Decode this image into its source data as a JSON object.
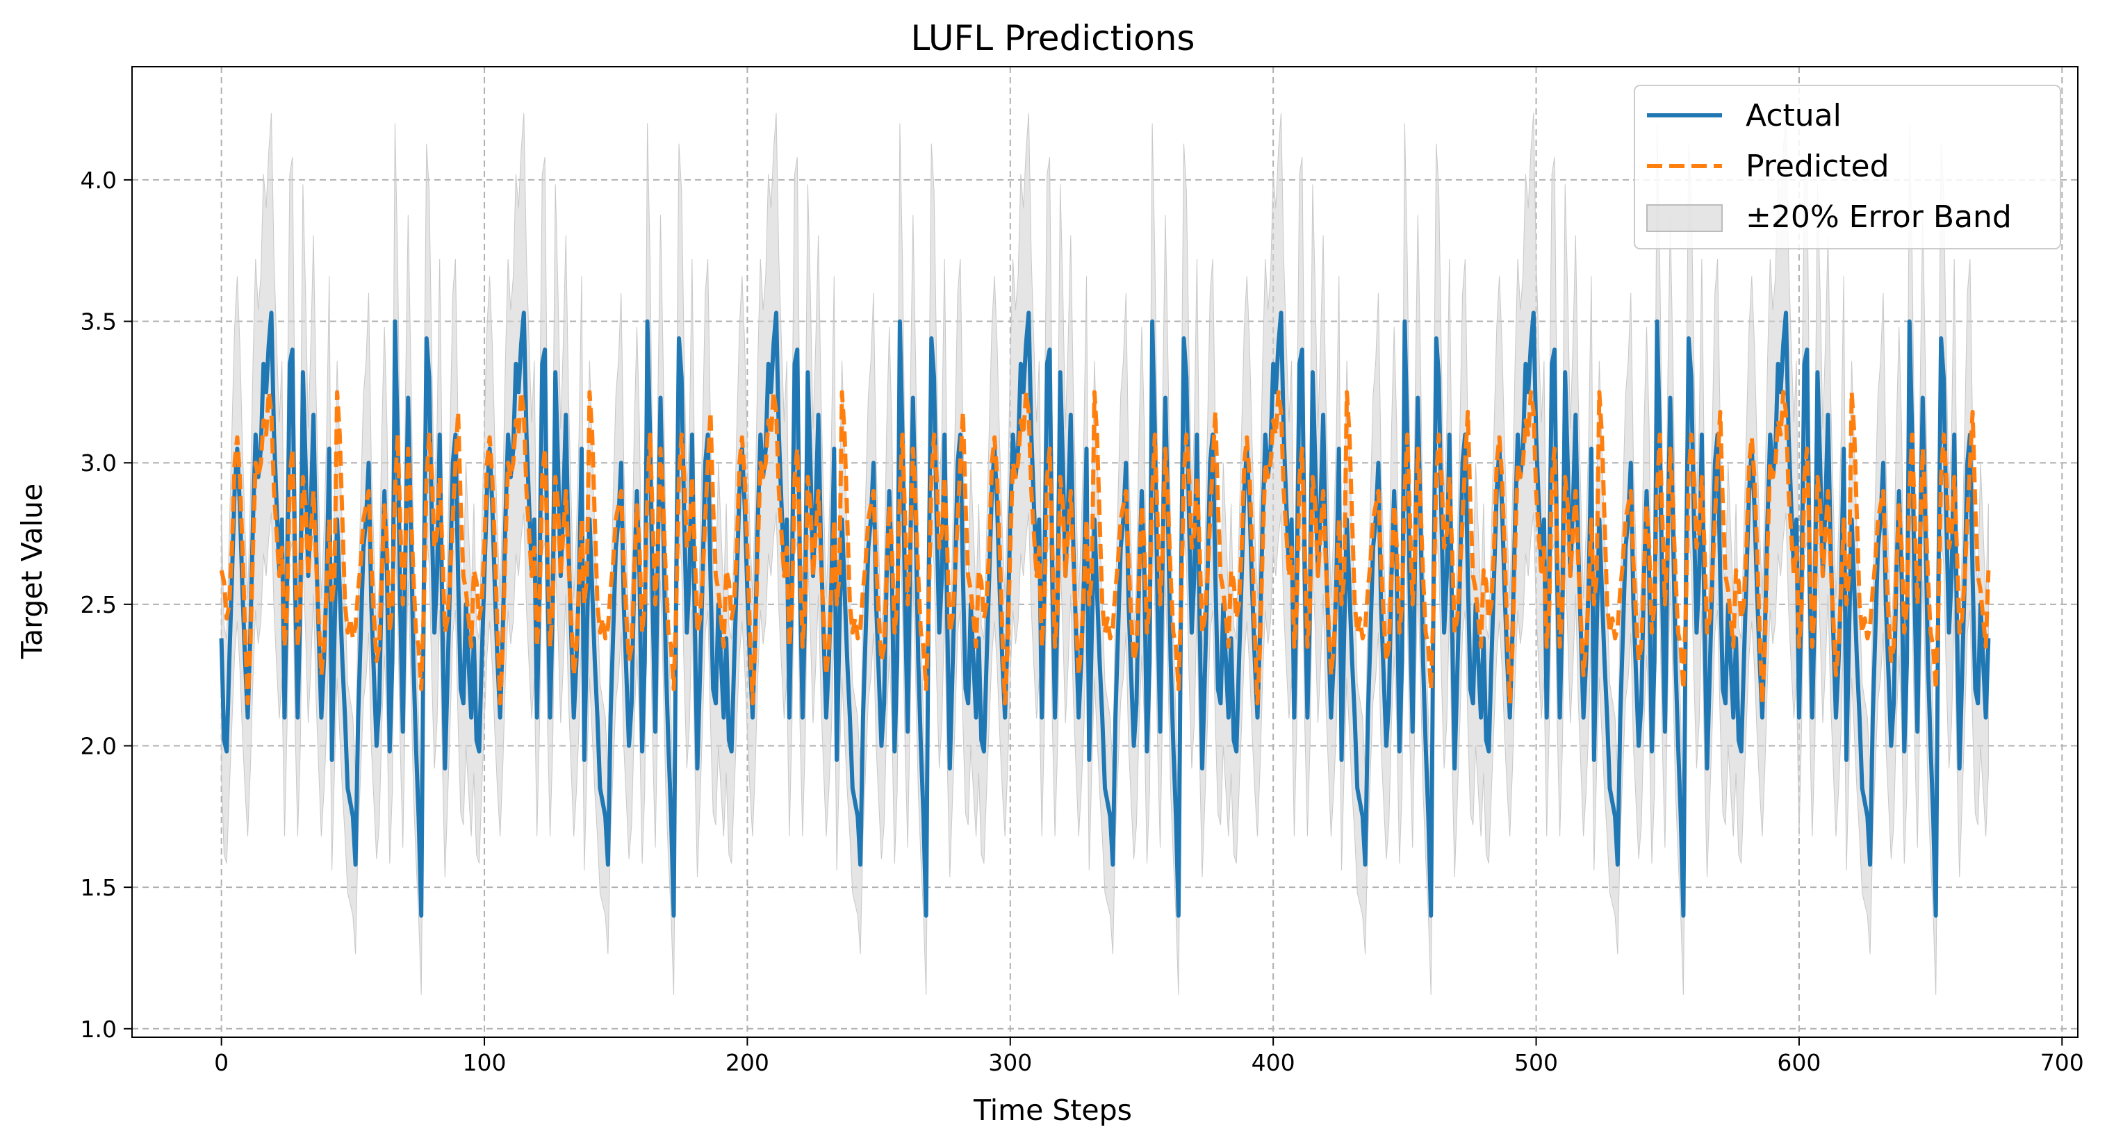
{
  "chart_data": {
    "type": "line",
    "title": "LUFL Predictions",
    "xlabel": "Time Steps",
    "ylabel": "Target Value",
    "xlim": [
      -34,
      706
    ],
    "ylim": [
      0.97,
      4.4
    ],
    "xticks": [
      0,
      100,
      200,
      300,
      400,
      500,
      600,
      700
    ],
    "yticks": [
      1.0,
      1.5,
      2.0,
      2.5,
      3.0,
      3.5,
      4.0
    ],
    "ytick_labels": [
      "1.0",
      "1.5",
      "2.0",
      "2.5",
      "3.0",
      "3.5",
      "4.0"
    ],
    "grid": true,
    "legend_position": "top-right",
    "period": 96,
    "n_points": 673,
    "band_fraction": 0.2,
    "series": [
      {
        "name": "Actual",
        "color": "#1f77b4",
        "style": "solid",
        "cycle_values": [
          2.38,
          2.02,
          1.98,
          2.3,
          2.6,
          2.9,
          3.05,
          2.85,
          2.55,
          2.3,
          2.1,
          2.4,
          2.8,
          3.1,
          2.95,
          3.05,
          3.35,
          3.25,
          3.42,
          3.53,
          3.1,
          2.85,
          2.62,
          2.8,
          2.1,
          2.6,
          3.35,
          3.4,
          2.6,
          2.1,
          2.5,
          3.32,
          3.0,
          2.6,
          2.85,
          3.17,
          2.7,
          2.4,
          2.1,
          2.3,
          2.58,
          3.05,
          1.95,
          2.4,
          2.8,
          2.55,
          2.3,
          2.1,
          1.85,
          1.8,
          1.75,
          1.58,
          2.1,
          2.4,
          2.7,
          2.8,
          3.0,
          2.5,
          2.25,
          2.0,
          2.15,
          2.6,
          2.9,
          2.6,
          1.98,
          2.3,
          3.5,
          3.1,
          2.5,
          2.05,
          2.7,
          3.23,
          2.8,
          2.3,
          2.0,
          1.75,
          1.4,
          2.6,
          3.44,
          3.3,
          2.8,
          2.4,
          2.6,
          3.1,
          2.45,
          1.92,
          2.25,
          2.6,
          3.0,
          3.1,
          2.6,
          2.2,
          2.15,
          2.5,
          2.3,
          2.1
        ]
      },
      {
        "name": "Predicted",
        "color": "#ff7f0e",
        "style": "dashed",
        "cycle_values": [
          2.62,
          2.58,
          2.45,
          2.5,
          2.7,
          3.0,
          3.09,
          2.95,
          2.7,
          2.4,
          2.15,
          2.35,
          2.7,
          3.0,
          2.95,
          3.0,
          3.15,
          3.1,
          3.25,
          3.18,
          2.9,
          2.75,
          2.6,
          2.7,
          2.35,
          2.5,
          2.95,
          3.05,
          2.7,
          2.35,
          2.5,
          2.95,
          2.85,
          2.6,
          2.75,
          2.9,
          2.65,
          2.45,
          2.25,
          2.35,
          2.55,
          2.8,
          2.5,
          2.6,
          3.25,
          3.1,
          2.8,
          2.5,
          2.4,
          2.45,
          2.38,
          2.42,
          2.55,
          2.65,
          2.8,
          2.85,
          2.9,
          2.65,
          2.45,
          2.3,
          2.35,
          2.6,
          2.85,
          2.7,
          2.4,
          2.5,
          2.9,
          3.1,
          2.8,
          2.5,
          2.7,
          3.05,
          2.85,
          2.6,
          2.4,
          2.35,
          2.2,
          2.5,
          2.95,
          3.1,
          2.95,
          2.7,
          2.75,
          2.95,
          2.7,
          2.4,
          2.45,
          2.6,
          2.8,
          3.0,
          3.18,
          2.85,
          2.6,
          2.55,
          2.45,
          2.35
        ]
      },
      {
        "name": "±20% Error Band",
        "color": "#d3d3d3",
        "style": "fill"
      }
    ]
  }
}
